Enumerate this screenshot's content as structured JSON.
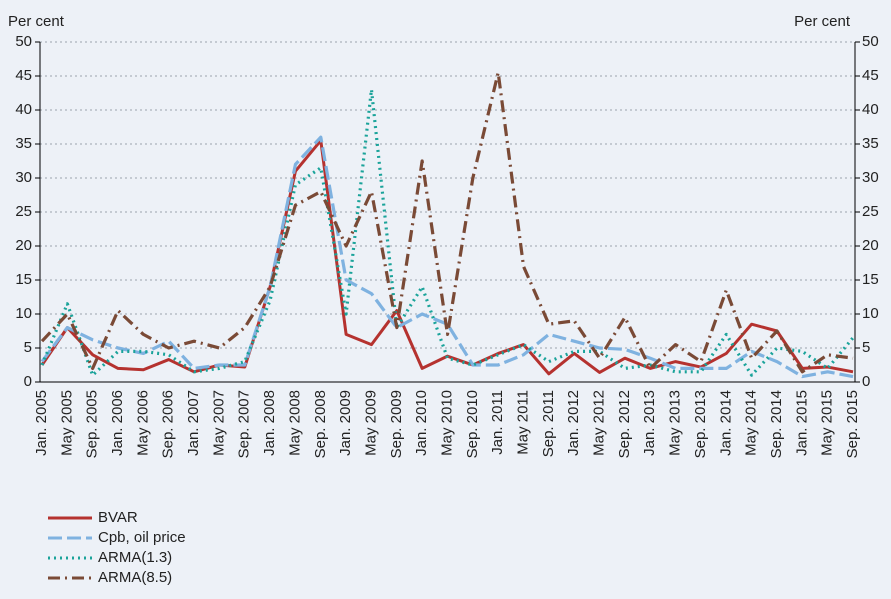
{
  "chart_data": {
    "type": "line",
    "y_label": "Per cent",
    "y2_label": "Per cent",
    "categories": [
      "Jan. 2005",
      "May 2005",
      "Sep. 2005",
      "Jan. 2006",
      "May 2006",
      "Sep. 2006",
      "Jan. 2007",
      "May 2007",
      "Sep. 2007",
      "Jan. 2008",
      "May 2008",
      "Sep. 2008",
      "Jan. 2009",
      "May 2009",
      "Sep. 2009",
      "Jan. 2010",
      "May 2010",
      "Sep. 2010",
      "Jan. 2011",
      "May 2011",
      "Sep. 2011",
      "Jan. 2012",
      "May 2012",
      "Sep. 2012",
      "Jan. 2013",
      "May 2013",
      "Sep. 2013",
      "Jan. 2014",
      "May 2014",
      "Sep. 2014",
      "Jan. 2015",
      "May 2015",
      "Sep. 2015"
    ],
    "series": [
      {
        "name": "BVAR",
        "color": "#b5322f",
        "style": "solid",
        "values": [
          2.5,
          8,
          4,
          2,
          1.8,
          3.3,
          1.5,
          2.5,
          2.2,
          14,
          31,
          35.5,
          7,
          5.5,
          10.5,
          2,
          3.8,
          2.5,
          4.2,
          5.5,
          1.2,
          4.2,
          1.4,
          3.5,
          2,
          3,
          2.2,
          4.2,
          8.5,
          7.5,
          2,
          2.2,
          1.5
        ]
      },
      {
        "name": "Cpb, oil price",
        "color": "#7fb2e0",
        "style": "dashed",
        "values": [
          3,
          8,
          6.2,
          5,
          4.2,
          6,
          2,
          2.5,
          2.5,
          14,
          32,
          36,
          15,
          13,
          8,
          10,
          8.5,
          2.5,
          2.5,
          4,
          7,
          6,
          5,
          4.8,
          3.5,
          2,
          2,
          2,
          4.5,
          3,
          0.8,
          1.5,
          0.8
        ]
      },
      {
        "name": "ARMA(1.3)",
        "color": "#1aa39a",
        "style": "dotted",
        "values": [
          2.5,
          11.5,
          1,
          4.5,
          4.5,
          4,
          1.5,
          2,
          3,
          12,
          29,
          31.5,
          10,
          43,
          8,
          14,
          3.5,
          2.5,
          4,
          5.5,
          3,
          4.5,
          4.5,
          2,
          2.5,
          1.5,
          1.5,
          7,
          1,
          5,
          4.5,
          2,
          6.5
        ]
      },
      {
        "name": "ARMA(8.5)",
        "color": "#7a4a36",
        "style": "dashdot",
        "values": [
          6,
          10,
          2,
          10.5,
          7,
          5,
          6,
          5,
          8,
          14,
          26,
          28,
          20,
          28,
          8,
          32.5,
          7,
          30,
          45.5,
          17,
          8.5,
          9,
          3.5,
          9.5,
          2,
          5.5,
          3,
          13.5,
          3.5,
          7.5,
          1.5,
          4,
          3.5
        ]
      }
    ],
    "ylim": [
      0,
      50
    ],
    "yticks": [
      0,
      5,
      10,
      15,
      20,
      25,
      30,
      35,
      40,
      45,
      50
    ],
    "y2lim": [
      0,
      50
    ],
    "y2ticks": [
      0,
      5,
      10,
      15,
      20,
      25,
      30,
      35,
      40,
      45,
      50
    ],
    "grid": true
  }
}
